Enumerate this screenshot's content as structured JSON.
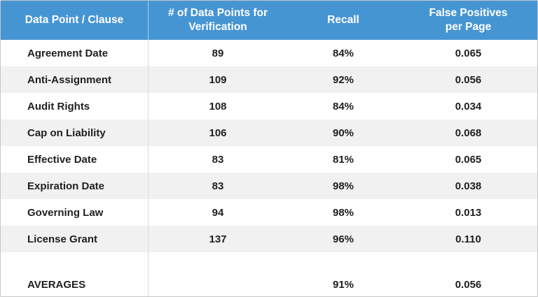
{
  "colors": {
    "header_bg": "#4695d3",
    "header_text": "#ffffff",
    "alt_row_bg": "#f1f1f2",
    "body_text": "#1f1f1f",
    "outer_border": "#c6c6c6",
    "column_divider": "#dadada"
  },
  "chart_data": {
    "type": "table",
    "columns": [
      "Data Point / Clause",
      "# of Data Points for Verification",
      "Recall",
      "False Positives per Page"
    ],
    "rows": [
      {
        "clause": "Agreement Date",
        "data_points": "89",
        "recall": "84%",
        "false_positives": "0.065"
      },
      {
        "clause": "Anti-Assignment",
        "data_points": "109",
        "recall": "92%",
        "false_positives": "0.056"
      },
      {
        "clause": "Audit Rights",
        "data_points": "108",
        "recall": "84%",
        "false_positives": "0.034"
      },
      {
        "clause": "Cap on Liability",
        "data_points": "106",
        "recall": "90%",
        "false_positives": "0.068"
      },
      {
        "clause": "Effective Date",
        "data_points": "83",
        "recall": "81%",
        "false_positives": "0.065"
      },
      {
        "clause": "Expiration Date",
        "data_points": "83",
        "recall": "98%",
        "false_positives": "0.038"
      },
      {
        "clause": "Governing Law",
        "data_points": "94",
        "recall": "98%",
        "false_positives": "0.013"
      },
      {
        "clause": "License Grant",
        "data_points": "137",
        "recall": "96%",
        "false_positives": "0.110"
      }
    ],
    "averages": {
      "label": "AVERAGES",
      "data_points": "",
      "recall": "91%",
      "false_positives": "0.056"
    }
  }
}
